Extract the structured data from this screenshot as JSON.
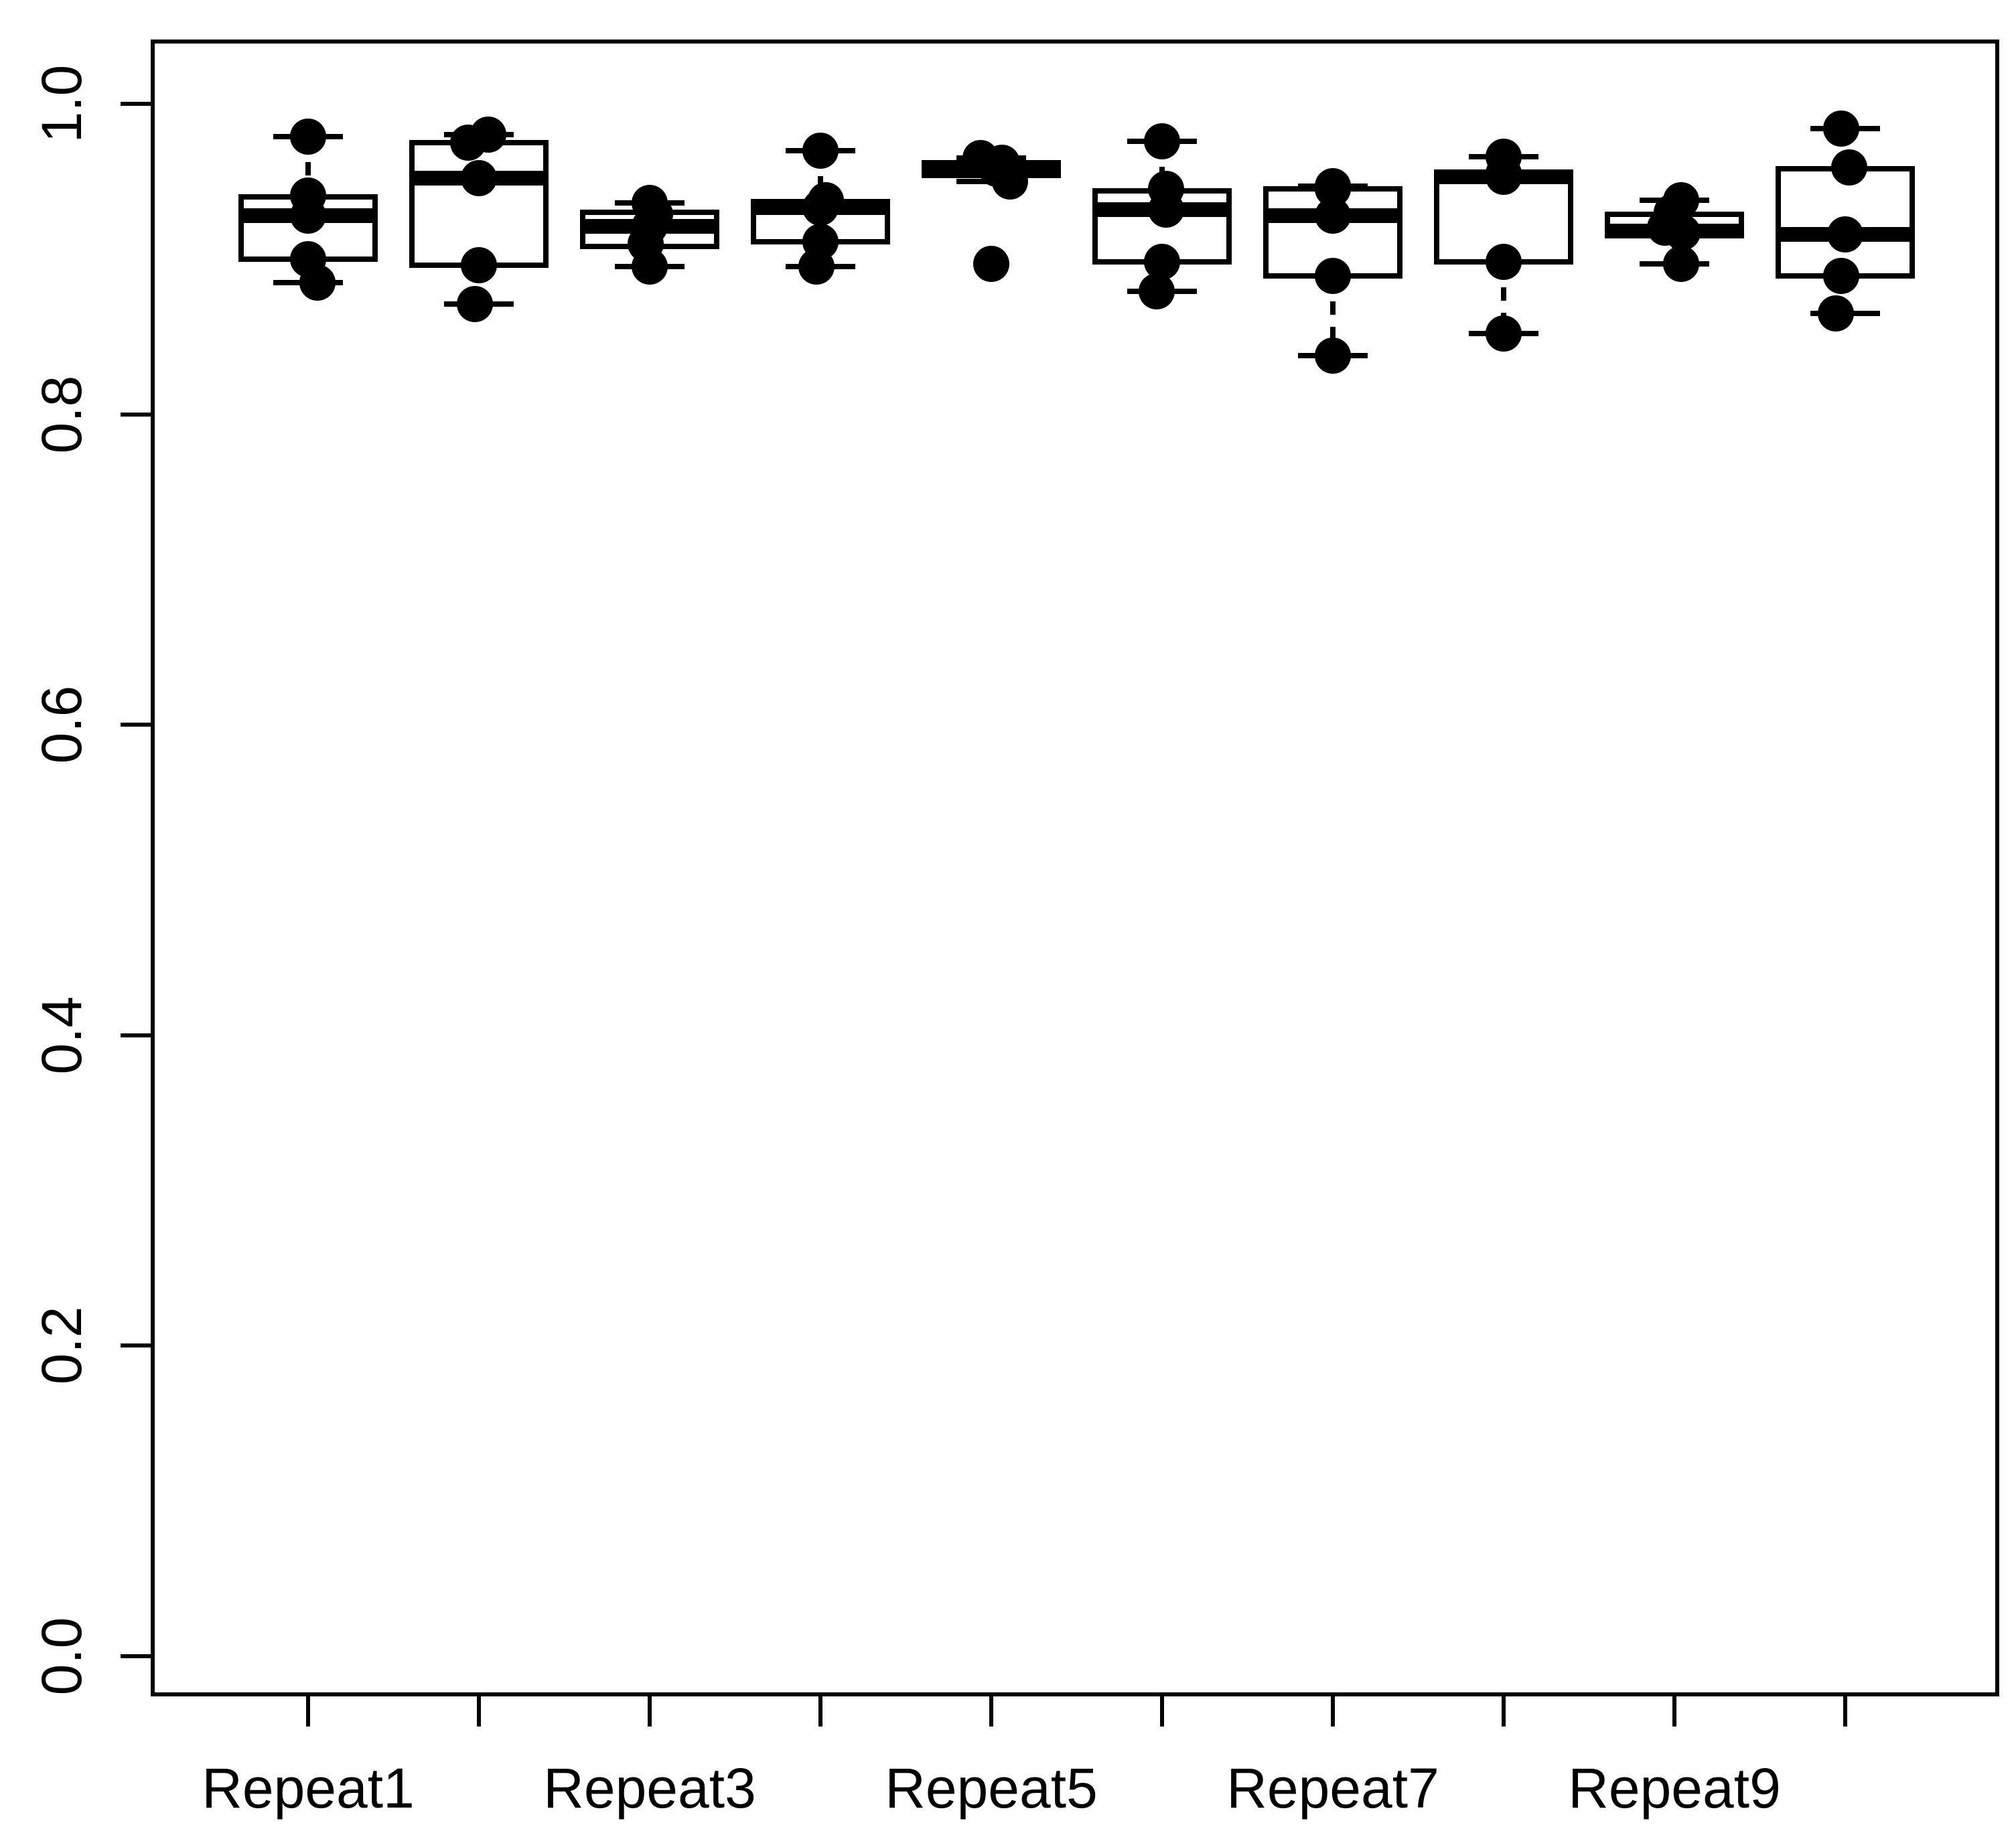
{
  "figure": {
    "background_color": "#ffffff",
    "foreground_color": "#000000",
    "title": ""
  },
  "chart_data": {
    "type": "boxplot",
    "title": "",
    "xlabel": "",
    "ylabel": "",
    "ylim": [
      0,
      1
    ],
    "grid": false,
    "legend": false,
    "n_boxes": 10,
    "y_ticks": [
      {
        "label": "1.0",
        "value": 1.0
      },
      {
        "label": "0.8",
        "value": 0.8
      },
      {
        "label": "0.6",
        "value": 0.6
      },
      {
        "label": "0.4",
        "value": 0.4
      },
      {
        "label": "0.2",
        "value": 0.2
      },
      {
        "label": "0.0",
        "value": 0.0
      }
    ],
    "categories": [
      "Repeat1",
      "",
      "Repeat3",
      "",
      "Repeat5",
      "",
      "Repeat7",
      "",
      "Repeat9",
      ""
    ],
    "boxes": [
      {
        "label": "Repeat1",
        "stats": {
          "min": 0.885,
          "q1": 0.9,
          "median": 0.928,
          "q3": 0.94,
          "max": 0.979
        },
        "outliers": [],
        "points": [
          [
            0.979,
            0
          ],
          [
            0.941,
            0
          ],
          [
            0.928,
            0
          ],
          [
            0.9,
            0
          ],
          [
            0.885,
            14
          ]
        ]
      },
      {
        "label": "",
        "stats": {
          "min": 0.871,
          "q1": 0.896,
          "median": 0.952,
          "q3": 0.975,
          "max": 0.98
        },
        "outliers": [],
        "points": [
          [
            0.98,
            14
          ],
          [
            0.975,
            -16
          ],
          [
            0.952,
            0
          ],
          [
            0.896,
            0
          ],
          [
            0.871,
            -6
          ]
        ]
      },
      {
        "label": "Repeat3",
        "stats": {
          "min": 0.895,
          "q1": 0.908,
          "median": 0.921,
          "q3": 0.93,
          "max": 0.936
        },
        "outliers": [],
        "points": [
          [
            0.936,
            0
          ],
          [
            0.929,
            8
          ],
          [
            0.921,
            0
          ],
          [
            0.91,
            -6
          ],
          [
            0.895,
            0
          ]
        ]
      },
      {
        "label": "",
        "stats": {
          "min": 0.895,
          "q1": 0.911,
          "median": 0.933,
          "q3": 0.937,
          "max": 0.97
        },
        "outliers": [],
        "points": [
          [
            0.97,
            0
          ],
          [
            0.938,
            8
          ],
          [
            0.933,
            0
          ],
          [
            0.911,
            0
          ],
          [
            0.895,
            -6
          ]
        ]
      },
      {
        "label": "Repeat5",
        "stats": {
          "min": 0.95,
          "q1": 0.954,
          "median": 0.958,
          "q3": 0.962,
          "max": 0.965
        },
        "outliers": [
          0.897
        ],
        "points": [
          [
            0.965,
            -16
          ],
          [
            0.962,
            16
          ],
          [
            0.958,
            8
          ],
          [
            0.95,
            28
          ],
          [
            0.897,
            0
          ]
        ]
      },
      {
        "label": "",
        "stats": {
          "min": 0.879,
          "q1": 0.898,
          "median": 0.932,
          "q3": 0.944,
          "max": 0.976
        },
        "outliers": [],
        "points": [
          [
            0.976,
            0
          ],
          [
            0.945,
            6
          ],
          [
            0.932,
            6
          ],
          [
            0.898,
            0
          ],
          [
            0.879,
            -8
          ]
        ]
      },
      {
        "label": "Repeat7",
        "stats": {
          "min": 0.838,
          "q1": 0.889,
          "median": 0.928,
          "q3": 0.945,
          "max": 0.947
        },
        "outliers": [],
        "points": [
          [
            0.947,
            0
          ],
          [
            0.945,
            0
          ],
          [
            0.928,
            0
          ],
          [
            0.889,
            0
          ],
          [
            0.838,
            0
          ]
        ]
      },
      {
        "label": "",
        "stats": {
          "min": 0.852,
          "q1": 0.898,
          "median": 0.953,
          "q3": 0.955,
          "max": 0.966
        },
        "outliers": [],
        "points": [
          [
            0.966,
            0
          ],
          [
            0.955,
            0
          ],
          [
            0.953,
            0
          ],
          [
            0.898,
            0
          ],
          [
            0.852,
            0
          ]
        ]
      },
      {
        "label": "Repeat9",
        "stats": {
          "min": 0.897,
          "q1": 0.916,
          "median": 0.918,
          "q3": 0.929,
          "max": 0.938
        },
        "outliers": [],
        "points": [
          [
            0.938,
            10
          ],
          [
            0.93,
            -4
          ],
          [
            0.92,
            -14
          ],
          [
            0.917,
            12
          ],
          [
            0.897,
            10
          ]
        ]
      },
      {
        "label": "",
        "stats": {
          "min": 0.865,
          "q1": 0.889,
          "median": 0.916,
          "q3": 0.958,
          "max": 0.984
        },
        "outliers": [],
        "points": [
          [
            0.984,
            -6
          ],
          [
            0.959,
            6
          ],
          [
            0.916,
            0
          ],
          [
            0.889,
            -6
          ],
          [
            0.865,
            -14
          ]
        ]
      }
    ]
  }
}
